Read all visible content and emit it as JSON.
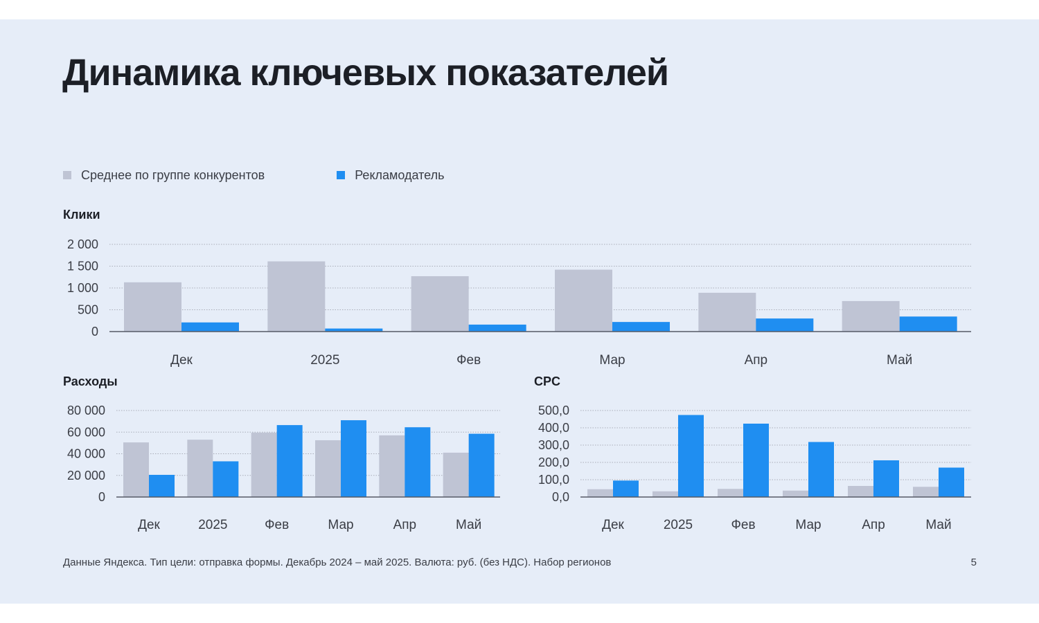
{
  "slide": {
    "title": "Динамика ключевых показателей",
    "footnote": "Данные Яндекса. Тип цели: отправка формы. Декабрь 2024 – май 2025. Валюта: руб. (без НДС). Набор регионов",
    "page_number": "5"
  },
  "legend": [
    {
      "label": "Среднее по группе конкурентов",
      "color": "#bfc4d4"
    },
    {
      "label": "Рекламодатель",
      "color": "#1f8ef1"
    }
  ],
  "colors": {
    "competitors": "#bfc4d4",
    "advertiser": "#1f8ef1",
    "grid": "#a9adb8",
    "axis": "#555a66"
  },
  "chart_data": [
    {
      "id": "clicks",
      "type": "bar",
      "title": "Клики",
      "categories": [
        "Дек",
        "2025",
        "Фев",
        "Мар",
        "Апр",
        "Май"
      ],
      "series": [
        {
          "name": "Среднее по группе конкурентов",
          "values": [
            1130,
            1610,
            1270,
            1420,
            890,
            700
          ]
        },
        {
          "name": "Рекламодатель",
          "values": [
            210,
            70,
            160,
            220,
            300,
            345
          ]
        }
      ],
      "ylim": [
        0,
        2000
      ],
      "yticks": [
        0,
        500,
        1000,
        1500,
        2000
      ],
      "ytick_labels": [
        "0",
        "500",
        "1 000",
        "1 500",
        "2 000"
      ],
      "grid": true
    },
    {
      "id": "spend",
      "type": "bar",
      "title": "Расходы",
      "categories": [
        "Дек",
        "2025",
        "Фев",
        "Мар",
        "Апр",
        "Май"
      ],
      "series": [
        {
          "name": "Среднее по группе конкурентов",
          "values": [
            50500,
            53000,
            59500,
            52500,
            57000,
            41000
          ]
        },
        {
          "name": "Рекламодатель",
          "values": [
            20500,
            33000,
            66500,
            71000,
            64500,
            58500
          ]
        }
      ],
      "ylim": [
        0,
        80000
      ],
      "yticks": [
        0,
        20000,
        40000,
        60000,
        80000
      ],
      "ytick_labels": [
        "0",
        "20 000",
        "40 000",
        "60 000",
        "80 000"
      ],
      "grid": true
    },
    {
      "id": "cpc",
      "type": "bar",
      "title": "CPC",
      "categories": [
        "Дек",
        "2025",
        "Фев",
        "Мар",
        "Апр",
        "Май"
      ],
      "series": [
        {
          "name": "Среднее по группе конкурентов",
          "values": [
            45,
            33,
            47,
            37,
            64,
            59
          ]
        },
        {
          "name": "Рекламодатель",
          "values": [
            95,
            474,
            424,
            318,
            212,
            170
          ]
        }
      ],
      "ylim": [
        0,
        500
      ],
      "yticks": [
        0,
        100,
        200,
        300,
        400,
        500
      ],
      "ytick_labels": [
        "0,0",
        "100,0",
        "200,0",
        "300,0",
        "400,0",
        "500,0"
      ],
      "grid": true
    }
  ]
}
